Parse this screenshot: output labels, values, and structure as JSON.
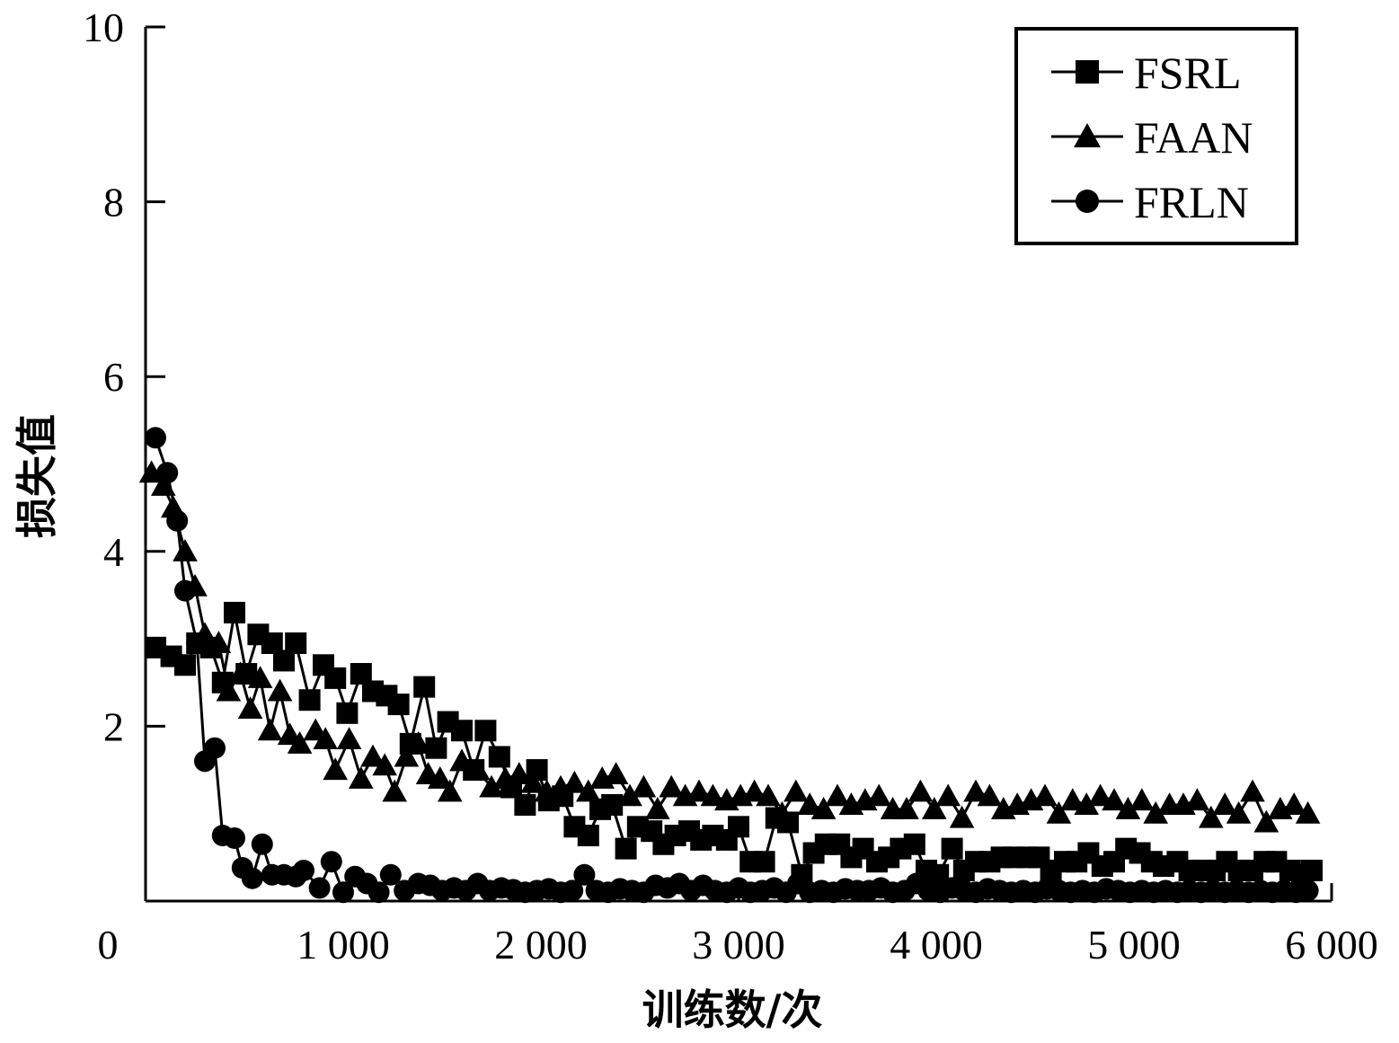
{
  "chart_data": {
    "type": "line",
    "xlabel": "训练数/次",
    "ylabel": "损失值",
    "xlim": [
      0,
      6000
    ],
    "ylim": [
      0,
      10
    ],
    "x_ticks": [
      {
        "value": 0,
        "label": "0"
      },
      {
        "value": 1000,
        "label": "1 000"
      },
      {
        "value": 2000,
        "label": "2 000"
      },
      {
        "value": 3000,
        "label": "3 000"
      },
      {
        "value": 4000,
        "label": "4 000"
      },
      {
        "value": 5000,
        "label": "5 000"
      },
      {
        "value": 6000,
        "label": "6 000"
      }
    ],
    "y_ticks": [
      {
        "value": 2,
        "label": "2"
      },
      {
        "value": 4,
        "label": "4"
      },
      {
        "value": 6,
        "label": "6"
      },
      {
        "value": 8,
        "label": "8"
      },
      {
        "value": 10,
        "label": "10"
      }
    ],
    "legend_position": "top-right",
    "series": [
      {
        "name": "FSRL",
        "marker": "square",
        "color": "#000000",
        "x": [
          50,
          130,
          200,
          260,
          330,
          390,
          450,
          510,
          570,
          640,
          700,
          760,
          830,
          900,
          960,
          1020,
          1090,
          1150,
          1220,
          1280,
          1340,
          1410,
          1470,
          1530,
          1600,
          1660,
          1720,
          1790,
          1850,
          1920,
          1980,
          2040,
          2110,
          2170,
          2240,
          2300,
          2360,
          2430,
          2490,
          2560,
          2620,
          2680,
          2750,
          2810,
          2870,
          2940,
          3000,
          3060,
          3130,
          3190,
          3250,
          3320,
          3380,
          3440,
          3510,
          3570,
          3630,
          3700,
          3760,
          3820,
          3890,
          3950,
          4010,
          4080,
          4140,
          4200,
          4270,
          4330,
          4390,
          4460,
          4520,
          4580,
          4650,
          4710,
          4770,
          4840,
          4900,
          4960,
          5030,
          5090,
          5150,
          5220,
          5280,
          5340,
          5410,
          5470,
          5530,
          5600,
          5660,
          5720,
          5790,
          5850,
          5900
        ],
        "values": [
          2.9,
          2.8,
          2.7,
          2.95,
          2.9,
          2.5,
          3.3,
          2.6,
          3.05,
          2.95,
          2.75,
          2.95,
          2.3,
          2.7,
          2.55,
          2.15,
          2.6,
          2.4,
          2.35,
          2.25,
          1.8,
          2.45,
          1.75,
          2.05,
          1.95,
          1.5,
          1.95,
          1.65,
          1.3,
          1.1,
          1.5,
          1.15,
          1.2,
          0.85,
          0.75,
          1.05,
          1.1,
          0.6,
          0.85,
          0.8,
          0.65,
          0.75,
          0.8,
          0.7,
          0.75,
          0.7,
          0.85,
          0.45,
          0.45,
          0.95,
          0.9,
          0.3,
          0.55,
          0.65,
          0.65,
          0.5,
          0.6,
          0.45,
          0.5,
          0.6,
          0.65,
          0.35,
          0.3,
          0.6,
          0.35,
          0.45,
          0.45,
          0.5,
          0.5,
          0.5,
          0.5,
          0.35,
          0.45,
          0.45,
          0.55,
          0.4,
          0.45,
          0.6,
          0.55,
          0.45,
          0.4,
          0.45,
          0.35,
          0.35,
          0.35,
          0.45,
          0.35,
          0.35,
          0.45,
          0.45,
          0.35,
          0.3,
          0.35
        ]
      },
      {
        "name": "FAAN",
        "marker": "triangle",
        "color": "#000000",
        "x": [
          30,
          90,
          140,
          200,
          250,
          300,
          370,
          420,
          480,
          530,
          580,
          630,
          680,
          730,
          780,
          860,
          910,
          960,
          1030,
          1090,
          1150,
          1210,
          1260,
          1320,
          1380,
          1430,
          1490,
          1540,
          1600,
          1680,
          1750,
          1820,
          1890,
          1960,
          2030,
          2100,
          2170,
          2240,
          2310,
          2380,
          2450,
          2520,
          2590,
          2660,
          2730,
          2800,
          2870,
          2940,
          3010,
          3080,
          3150,
          3220,
          3290,
          3360,
          3430,
          3500,
          3570,
          3640,
          3710,
          3780,
          3850,
          3920,
          3990,
          4060,
          4130,
          4200,
          4270,
          4340,
          4410,
          4480,
          4550,
          4620,
          4690,
          4760,
          4830,
          4900,
          4970,
          5040,
          5110,
          5180,
          5250,
          5320,
          5390,
          5460,
          5530,
          5600,
          5670,
          5740,
          5810,
          5880
        ],
        "values": [
          4.9,
          4.75,
          4.5,
          4.0,
          3.6,
          3.05,
          2.95,
          2.4,
          2.6,
          2.2,
          2.55,
          1.95,
          2.4,
          1.9,
          1.8,
          1.95,
          1.85,
          1.5,
          1.85,
          1.4,
          1.65,
          1.55,
          1.25,
          1.65,
          1.8,
          1.45,
          1.4,
          1.25,
          1.6,
          1.5,
          1.3,
          1.4,
          1.45,
          1.35,
          1.25,
          1.3,
          1.35,
          1.25,
          1.4,
          1.45,
          1.2,
          1.3,
          1.05,
          1.3,
          1.2,
          1.25,
          1.2,
          1.15,
          1.2,
          1.25,
          1.2,
          1.0,
          1.25,
          1.1,
          1.05,
          1.2,
          1.1,
          1.15,
          1.2,
          1.05,
          1.05,
          1.25,
          1.05,
          1.2,
          0.95,
          1.25,
          1.2,
          1.05,
          1.1,
          1.15,
          1.2,
          1.0,
          1.15,
          1.1,
          1.2,
          1.15,
          1.05,
          1.15,
          1.0,
          1.1,
          1.1,
          1.15,
          0.95,
          1.1,
          1.0,
          1.25,
          0.9,
          1.05,
          1.1,
          1.0
        ]
      },
      {
        "name": "FRLN",
        "marker": "circle",
        "color": "#000000",
        "x": [
          50,
          110,
          160,
          200,
          260,
          300,
          350,
          390,
          450,
          490,
          540,
          590,
          640,
          700,
          760,
          800,
          880,
          940,
          1000,
          1060,
          1120,
          1180,
          1240,
          1310,
          1380,
          1440,
          1500,
          1560,
          1620,
          1680,
          1740,
          1800,
          1860,
          1920,
          1980,
          2040,
          2100,
          2160,
          2220,
          2280,
          2340,
          2400,
          2460,
          2520,
          2580,
          2640,
          2700,
          2760,
          2820,
          2880,
          2940,
          3000,
          3060,
          3120,
          3180,
          3240,
          3300,
          3360,
          3420,
          3480,
          3540,
          3600,
          3660,
          3720,
          3780,
          3840,
          3900,
          3960,
          4020,
          4080,
          4140,
          4200,
          4260,
          4320,
          4380,
          4440,
          4500,
          4560,
          4620,
          4680,
          4740,
          4800,
          4860,
          4920,
          4980,
          5040,
          5100,
          5160,
          5220,
          5280,
          5340,
          5400,
          5460,
          5520,
          5580,
          5640,
          5700,
          5760,
          5820,
          5880
        ],
        "values": [
          5.3,
          4.9,
          4.35,
          3.55,
          2.95,
          1.6,
          1.75,
          0.75,
          0.72,
          0.38,
          0.26,
          0.65,
          0.3,
          0.3,
          0.28,
          0.35,
          0.15,
          0.45,
          0.1,
          0.28,
          0.2,
          0.1,
          0.3,
          0.12,
          0.2,
          0.18,
          0.12,
          0.15,
          0.12,
          0.2,
          0.12,
          0.15,
          0.13,
          0.1,
          0.12,
          0.14,
          0.1,
          0.12,
          0.3,
          0.12,
          0.1,
          0.14,
          0.12,
          0.1,
          0.18,
          0.15,
          0.2,
          0.12,
          0.18,
          0.12,
          0.1,
          0.15,
          0.1,
          0.12,
          0.15,
          0.1,
          0.2,
          0.1,
          0.12,
          0.1,
          0.14,
          0.12,
          0.12,
          0.15,
          0.1,
          0.12,
          0.2,
          0.12,
          0.1,
          0.15,
          0.12,
          0.1,
          0.14,
          0.12,
          0.1,
          0.12,
          0.1,
          0.14,
          0.12,
          0.1,
          0.12,
          0.1,
          0.14,
          0.12,
          0.1,
          0.12,
          0.1,
          0.12,
          0.1,
          0.12,
          0.1,
          0.12,
          0.1,
          0.12,
          0.1,
          0.12,
          0.1,
          0.12,
          0.1,
          0.12
        ]
      }
    ]
  }
}
